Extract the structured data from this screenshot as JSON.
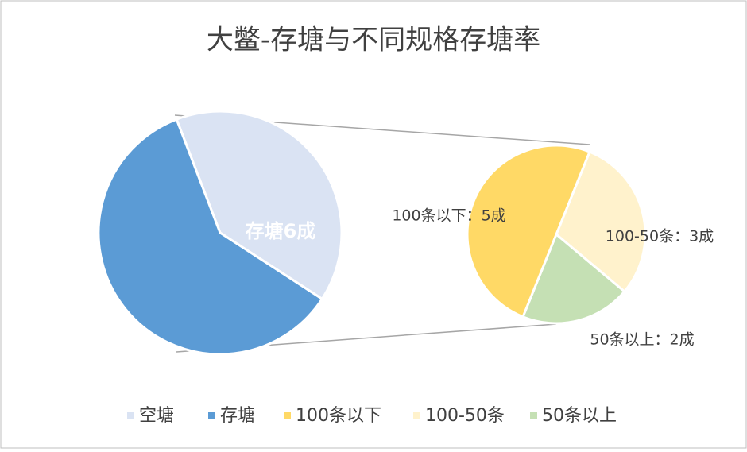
{
  "chart_data": [
    {
      "type": "pie",
      "title": "大鳖-存塘与不同规格存塘率",
      "categories": [
        "空塘",
        "存塘"
      ],
      "values": [
        4,
        6
      ],
      "value_labels": [
        null,
        "存塘6成"
      ],
      "colors": [
        "#dae3f3",
        "#5b9bd5"
      ]
    },
    {
      "type": "pie",
      "categories": [
        "100-50条",
        "50条以上",
        "100条以下"
      ],
      "values": [
        3,
        2,
        5
      ],
      "value_labels": [
        "100-50条：3成",
        "50条以上：2成",
        "100条以下：5成"
      ],
      "colors": [
        "#fff2cc",
        "#c5e0b4",
        "#ffd966"
      ]
    }
  ]
}
